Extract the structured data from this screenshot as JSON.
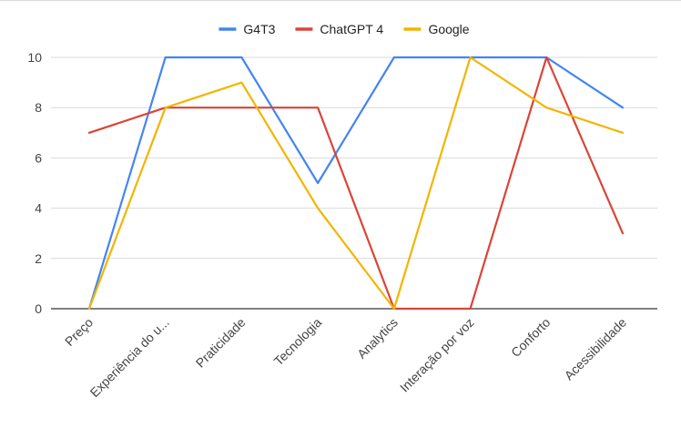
{
  "chart_data": {
    "type": "line",
    "title": "",
    "xlabel": "",
    "ylabel": "",
    "categories": [
      "Preço",
      "Experiência do u...",
      "Praticidade",
      "Tecnologia",
      "Analytics",
      "Interação por voz",
      "Conforto",
      "Acessibilidade"
    ],
    "series": [
      {
        "name": "G4T3",
        "color": "#4285f4",
        "values": [
          0,
          10,
          10,
          5,
          10,
          10,
          10,
          8
        ]
      },
      {
        "name": "ChatGPT 4",
        "color": "#db4437",
        "values": [
          7,
          8,
          8,
          8,
          0,
          0,
          10,
          3
        ]
      },
      {
        "name": "Google",
        "color": "#f4b400",
        "values": [
          0,
          8,
          9,
          4,
          0,
          10,
          8,
          7
        ]
      }
    ],
    "ylim": [
      0,
      10
    ],
    "yticks": [
      "0",
      "2",
      "4",
      "6",
      "8",
      "10"
    ],
    "grid": true,
    "legend_position": "top"
  }
}
